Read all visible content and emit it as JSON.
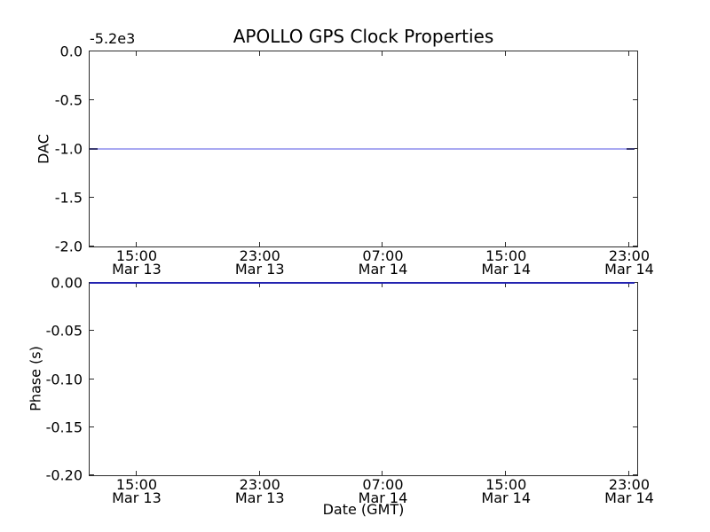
{
  "figure": {
    "title": "APOLLO GPS Clock Properties",
    "xlabel": "Date (GMT)",
    "background_color": "#ffffff",
    "text_color": "#000000",
    "spine_color": "#2b2b2b"
  },
  "chart_data": [
    {
      "type": "line",
      "position": "top-subplot",
      "title": "APOLLO GPS Clock Properties",
      "ylabel": "DAC",
      "y_axis_offset_text": "-5.2e3",
      "ylim": [
        -2.0,
        0.0
      ],
      "ytick_labels": [
        "0.0",
        "-0.5",
        "-1.0",
        "-1.5",
        "-2.0"
      ],
      "xticks": [
        {
          "time": "15:00",
          "date": "Mar 13",
          "pos": 0.0858
        },
        {
          "time": "23:00",
          "date": "Mar 13",
          "pos": 0.3107
        },
        {
          "time": "07:00",
          "date": "Mar 14",
          "pos": 0.5356
        },
        {
          "time": "15:00",
          "date": "Mar 14",
          "pos": 0.7605
        },
        {
          "time": "23:00",
          "date": "Mar 14",
          "pos": 0.9854
        }
      ],
      "grid": false,
      "legend": null,
      "series": [
        {
          "name": "dac",
          "plotted_value": -1.0,
          "description": "flat DAC trace at -1.0 on an axis with offset -5.2e3",
          "color": "#a9a9f2",
          "endcap_color": "#3c3c70",
          "x_start_frac": 0.0,
          "x_end_frac": 0.995
        }
      ]
    },
    {
      "type": "line",
      "position": "bottom-subplot",
      "ylabel": "Phase (s)",
      "xlabel": "Date (GMT)",
      "ylim": [
        -0.2,
        0.0
      ],
      "ytick_labels": [
        "0.00",
        "-0.05",
        "-0.10",
        "-0.15",
        "-0.20"
      ],
      "xticks": [
        {
          "time": "15:00",
          "date": "Mar 13",
          "pos": 0.0858
        },
        {
          "time": "23:00",
          "date": "Mar 13",
          "pos": 0.3107
        },
        {
          "time": "07:00",
          "date": "Mar 14",
          "pos": 0.5356
        },
        {
          "time": "15:00",
          "date": "Mar 14",
          "pos": 0.7605
        },
        {
          "time": "23:00",
          "date": "Mar 14",
          "pos": 0.9854
        }
      ],
      "grid": false,
      "legend": null,
      "series": [
        {
          "name": "phase",
          "plotted_value": 0.0,
          "description": "flat phase trace at 0.00 s along the top spine",
          "color": "#2323b0",
          "endcap_color": null,
          "x_start_frac": 0.0,
          "x_end_frac": 0.995
        }
      ]
    }
  ]
}
